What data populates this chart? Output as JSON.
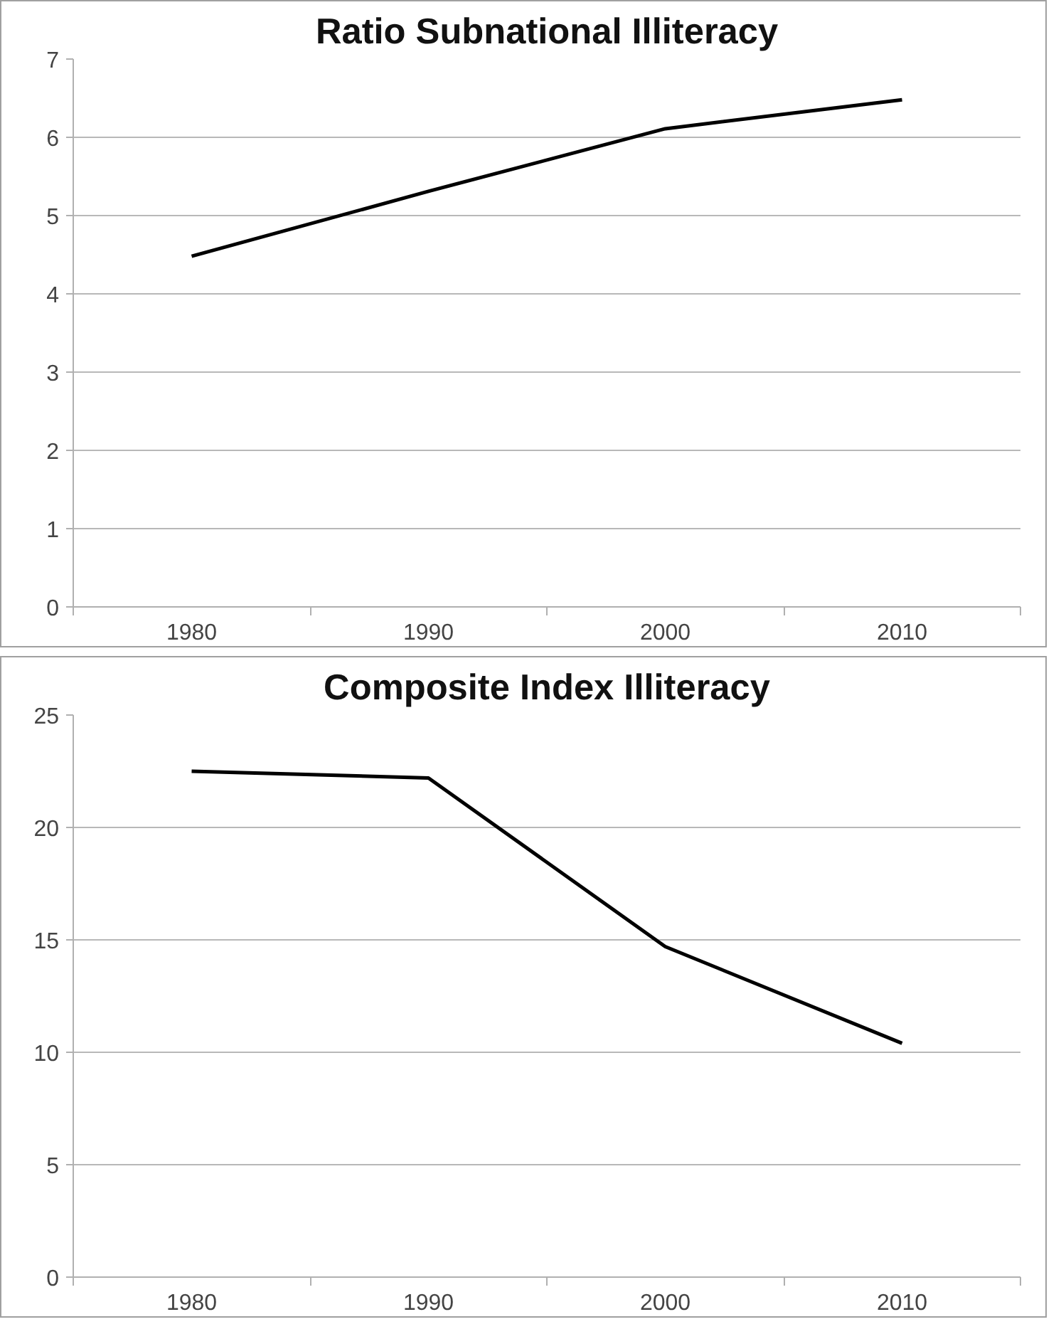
{
  "chart_data": [
    {
      "type": "line",
      "title": "Ratio Subnational Illiteracy",
      "categories": [
        "1980",
        "1990",
        "2000",
        "2010"
      ],
      "series": [
        {
          "color": "#000000",
          "values": [
            4.48,
            5.31,
            6.11,
            6.48
          ]
        }
      ],
      "ylim": [
        0,
        7
      ],
      "yticks": [
        0,
        1,
        2,
        3,
        4,
        5,
        6,
        7
      ],
      "grid": "y",
      "marker": "none",
      "line_style": "solid"
    },
    {
      "type": "line",
      "title": "Composite Index Illiteracy",
      "categories": [
        "1980",
        "1990",
        "2000",
        "2010"
      ],
      "series": [
        {
          "color": "#000000",
          "values": [
            22.5,
            22.2,
            14.7,
            10.4
          ]
        }
      ],
      "ylim": [
        0,
        25
      ],
      "yticks": [
        0,
        5,
        10,
        15,
        20,
        25
      ],
      "grid": "y",
      "marker": "none",
      "line_style": "solid"
    }
  ]
}
